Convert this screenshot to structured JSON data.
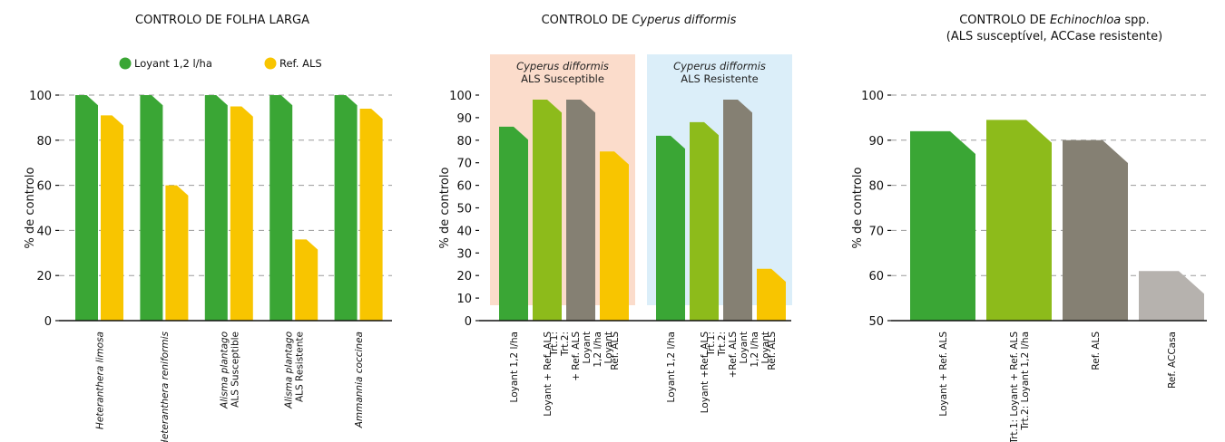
{
  "colors": {
    "loyant": "#3aa635",
    "ref_als": "#f8c500",
    "loyant_ref_als": "#8dbb1b",
    "gray": "#858073",
    "light_gray": "#b6b2ae",
    "band_susceptible": "#fbdccb",
    "band_resistente": "#dbeef9"
  },
  "chart_data": [
    {
      "type": "bar",
      "title": "CONTROLO DE FOLHA LARGA",
      "ylabel": "% de controlo",
      "ylim": [
        0,
        100
      ],
      "yticks": [
        0,
        20,
        40,
        60,
        80,
        100
      ],
      "grid": true,
      "legend_position": "top",
      "categories": [
        [
          "Heteranthera limosa"
        ],
        [
          "Heteranthera reniformis"
        ],
        [
          "Alisma plantago",
          "ALS Susceptible"
        ],
        [
          "Alisma plantago",
          "ALS Resistente"
        ],
        [
          "Ammannia coccinea"
        ]
      ],
      "series": [
        {
          "name": "Loyant 1,2 l/ha",
          "color": "#3aa635",
          "values": [
            100,
            100,
            100,
            100,
            100
          ]
        },
        {
          "name": "Ref. ALS",
          "color": "#f8c500",
          "values": [
            91,
            60,
            95,
            36,
            94
          ]
        }
      ]
    },
    {
      "type": "bar",
      "title_prefix": "CONTROLO DE ",
      "title_italic": "Cyperus difformis",
      "ylabel": "% de controlo",
      "ylim": [
        0,
        100
      ],
      "yticks": [
        0,
        10,
        20,
        30,
        40,
        50,
        60,
        70,
        80,
        90,
        100
      ],
      "grid": false,
      "groups": [
        {
          "title": "Cyperus difformis",
          "subtitle": "ALS Susceptible"
        },
        {
          "title": "Cyperus difformis",
          "subtitle": "ALS Resistente"
        }
      ],
      "bars": [
        {
          "group": 0,
          "value": 86,
          "color": "#3aa635",
          "label": [
            "Loyant  1,2 l/ha"
          ]
        },
        {
          "group": 0,
          "value": 98,
          "color": "#8dbb1b",
          "label": [
            "Loyant + Ref. ALS"
          ]
        },
        {
          "group": 0,
          "value": 98,
          "color": "#858073",
          "label": [
            "Trt.1:",
            "Trt.2:",
            "+ Ref. ALS",
            "Loyant",
            "1,2 l/ha",
            "Loyant"
          ]
        },
        {
          "group": 0,
          "value": 75,
          "color": "#f8c500",
          "label": [
            "Ref. ALS"
          ]
        },
        {
          "group": 1,
          "value": 82,
          "color": "#3aa635",
          "label": [
            "Loyant  1,2 l/ha"
          ]
        },
        {
          "group": 1,
          "value": 88,
          "color": "#8dbb1b",
          "label": [
            "Loyant +Ref. ALS"
          ]
        },
        {
          "group": 1,
          "value": 98,
          "color": "#858073",
          "label": [
            "Trt.1:",
            "Trt.2:",
            "+Ref. ALS",
            "Loyant",
            "1,2 l/ha",
            "Loyant"
          ]
        },
        {
          "group": 1,
          "value": 23,
          "color": "#f8c500",
          "label": [
            "Ref. ALS"
          ]
        }
      ]
    },
    {
      "type": "bar",
      "title_prefix": "CONTROLO DE ",
      "title_italic": "Echinochloa",
      "title_suffix": " spp.",
      "subtitle": "(ALS susceptível, ACCase resistente)",
      "ylabel": "% de controlo",
      "ylim": [
        50,
        100
      ],
      "yticks": [
        50,
        60,
        70,
        80,
        90,
        100
      ],
      "grid": true,
      "bars": [
        {
          "value": 92,
          "color": "#3aa635",
          "label": [
            "Loyant + Ref. ALS"
          ]
        },
        {
          "value": 94.5,
          "color": "#8dbb1b",
          "label": [
            "Trt.1: Loyant + Ref. ALS",
            "Trt.2: Loyant  1,2 l/ha"
          ]
        },
        {
          "value": 90,
          "color": "#858073",
          "label": [
            "Ref. ALS"
          ]
        },
        {
          "value": 61,
          "color": "#b6b2ae",
          "label": [
            "Ref. ACCasa"
          ]
        }
      ]
    }
  ]
}
